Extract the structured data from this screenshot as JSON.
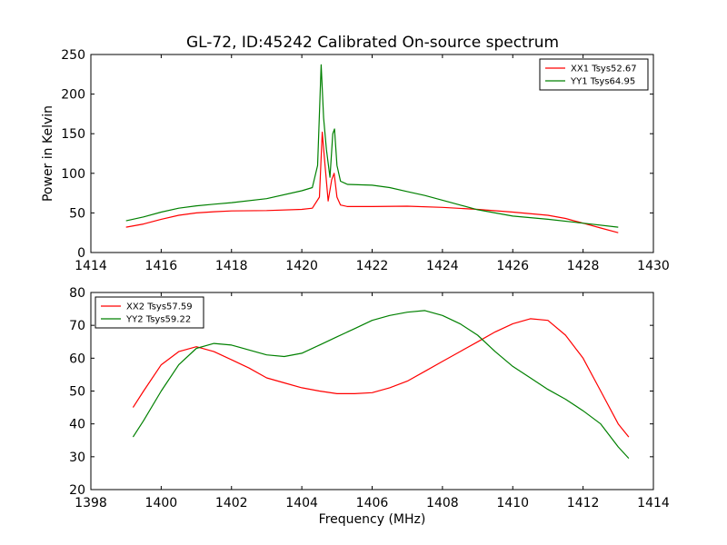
{
  "title": "GL-72, ID:45242 Calibrated On-source spectrum",
  "chart_data": [
    {
      "type": "line",
      "ylabel": "Power in Kelvin",
      "xlabel": "",
      "xlim": [
        1414,
        1430
      ],
      "ylim": [
        0,
        250
      ],
      "xticks": [
        1414,
        1416,
        1418,
        1420,
        1422,
        1424,
        1426,
        1428,
        1430
      ],
      "yticks": [
        0,
        50,
        100,
        150,
        200,
        250
      ],
      "legend": "top-right",
      "series": [
        {
          "name": "XX1 Tsys52.67",
          "color": "#ff0000",
          "points": [
            [
              1415,
              32
            ],
            [
              1415.5,
              36
            ],
            [
              1416,
              42
            ],
            [
              1416.5,
              47
            ],
            [
              1417,
              50
            ],
            [
              1417.5,
              51.5
            ],
            [
              1418,
              52.5
            ],
            [
              1419,
              53
            ],
            [
              1420,
              54.5
            ],
            [
              1420.3,
              56
            ],
            [
              1420.5,
              70
            ],
            [
              1420.58,
              152
            ],
            [
              1420.65,
              115
            ],
            [
              1420.75,
              65
            ],
            [
              1420.85,
              92
            ],
            [
              1420.92,
              100
            ],
            [
              1421.0,
              70
            ],
            [
              1421.1,
              60
            ],
            [
              1421.3,
              58
            ],
            [
              1422,
              58
            ],
            [
              1423,
              58.5
            ],
            [
              1424,
              57
            ],
            [
              1425,
              54.5
            ],
            [
              1426,
              51
            ],
            [
              1427,
              47
            ],
            [
              1427.5,
              43
            ],
            [
              1428,
              37
            ],
            [
              1428.5,
              31
            ],
            [
              1429,
              25
            ]
          ]
        },
        {
          "name": "YY1 Tsys64.95",
          "color": "#008000",
          "points": [
            [
              1415,
              40
            ],
            [
              1415.5,
              45
            ],
            [
              1416,
              51
            ],
            [
              1416.5,
              56
            ],
            [
              1417,
              59
            ],
            [
              1417.5,
              61
            ],
            [
              1418,
              63
            ],
            [
              1419,
              68
            ],
            [
              1420,
              78
            ],
            [
              1420.3,
              82
            ],
            [
              1420.45,
              110
            ],
            [
              1420.55,
              237
            ],
            [
              1420.62,
              170
            ],
            [
              1420.7,
              130
            ],
            [
              1420.8,
              95
            ],
            [
              1420.88,
              150
            ],
            [
              1420.93,
              156
            ],
            [
              1421.0,
              110
            ],
            [
              1421.1,
              90
            ],
            [
              1421.3,
              86
            ],
            [
              1422,
              85
            ],
            [
              1422.5,
              82
            ],
            [
              1423,
              77
            ],
            [
              1423.5,
              72
            ],
            [
              1424,
              66
            ],
            [
              1424.5,
              60
            ],
            [
              1425,
              54
            ],
            [
              1425.5,
              50
            ],
            [
              1426,
              46
            ],
            [
              1427,
              42
            ],
            [
              1428,
              37
            ],
            [
              1429,
              32
            ]
          ]
        }
      ]
    },
    {
      "type": "line",
      "ylabel": "",
      "xlabel": "Frequency (MHz)",
      "xlim": [
        1398,
        1414
      ],
      "ylim": [
        20,
        80
      ],
      "xticks": [
        1398,
        1400,
        1402,
        1404,
        1406,
        1408,
        1410,
        1412,
        1414
      ],
      "yticks": [
        20,
        30,
        40,
        50,
        60,
        70,
        80
      ],
      "legend": "top-left",
      "series": [
        {
          "name": "XX2 Tsys57.59",
          "color": "#ff0000",
          "points": [
            [
              1399.2,
              45
            ],
            [
              1399.5,
              50
            ],
            [
              1400,
              58
            ],
            [
              1400.5,
              62
            ],
            [
              1401,
              63.5
            ],
            [
              1401.5,
              62
            ],
            [
              1402,
              59.5
            ],
            [
              1402.5,
              57
            ],
            [
              1403,
              54
            ],
            [
              1403.5,
              52.5
            ],
            [
              1404,
              51
            ],
            [
              1404.5,
              50
            ],
            [
              1405,
              49.2
            ],
            [
              1405.5,
              49.2
            ],
            [
              1406,
              49.5
            ],
            [
              1406.5,
              51
            ],
            [
              1407,
              53
            ],
            [
              1407.5,
              56
            ],
            [
              1408,
              59
            ],
            [
              1408.5,
              62
            ],
            [
              1409,
              65
            ],
            [
              1409.5,
              68
            ],
            [
              1410,
              70.5
            ],
            [
              1410.5,
              72
            ],
            [
              1411,
              71.5
            ],
            [
              1411.5,
              67
            ],
            [
              1412,
              60
            ],
            [
              1412.5,
              50
            ],
            [
              1413,
              40
            ],
            [
              1413.3,
              36
            ]
          ]
        },
        {
          "name": "YY2 Tsys59.22",
          "color": "#008000",
          "points": [
            [
              1399.2,
              36
            ],
            [
              1399.5,
              41
            ],
            [
              1400,
              50
            ],
            [
              1400.5,
              58
            ],
            [
              1401,
              63
            ],
            [
              1401.5,
              64.5
            ],
            [
              1402,
              64
            ],
            [
              1402.5,
              62.5
            ],
            [
              1403,
              61
            ],
            [
              1403.5,
              60.5
            ],
            [
              1404,
              61.5
            ],
            [
              1404.5,
              64
            ],
            [
              1405,
              66.5
            ],
            [
              1405.5,
              69
            ],
            [
              1406,
              71.5
            ],
            [
              1406.5,
              73
            ],
            [
              1407,
              74
            ],
            [
              1407.5,
              74.5
            ],
            [
              1408,
              73
            ],
            [
              1408.5,
              70.5
            ],
            [
              1409,
              67
            ],
            [
              1409.5,
              62
            ],
            [
              1410,
              57.5
            ],
            [
              1410.5,
              54
            ],
            [
              1411,
              50.5
            ],
            [
              1411.5,
              47.5
            ],
            [
              1412,
              44
            ],
            [
              1412.5,
              40
            ],
            [
              1413,
              33
            ],
            [
              1413.3,
              29.5
            ]
          ]
        }
      ]
    }
  ]
}
